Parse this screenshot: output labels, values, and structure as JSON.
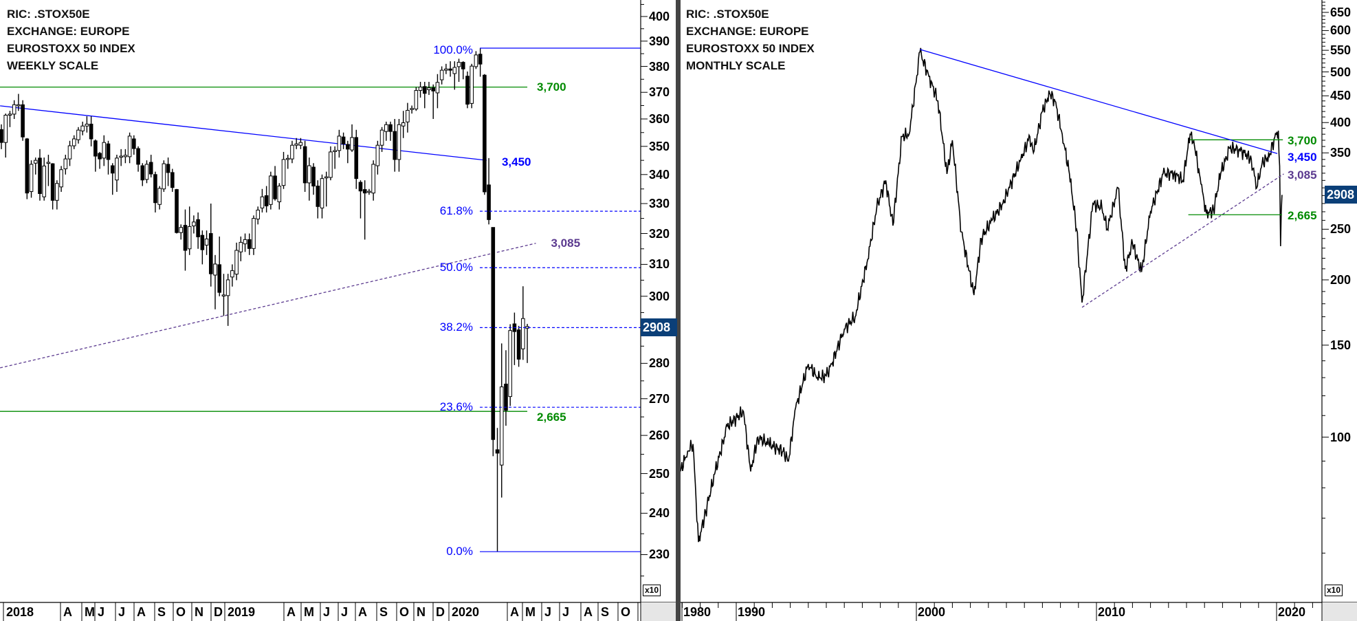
{
  "colors": {
    "trend": "#0000ff",
    "support": "#008a00",
    "rising": "#5b3a8f",
    "price_box": "#0b3f78"
  },
  "chart_data": [
    {
      "type": "candlestick",
      "title_lines": [
        "RIC: .STOX50E",
        "EXCHANGE: EUROPE",
        "EUROSTOXX 50 INDEX",
        "WEEKLY SCALE"
      ],
      "scale": "log",
      "ylim": [
        226,
        404
      ],
      "y_multiplier_label": "x10",
      "y_ticks": [
        400,
        390,
        380,
        370,
        360,
        350,
        340,
        330,
        320,
        310,
        300,
        280,
        270,
        260,
        250,
        240,
        230
      ],
      "x_labels": [
        "2018",
        "A",
        "M",
        "J",
        "J",
        "A",
        "S",
        "O",
        "N",
        "D",
        "2019",
        "A",
        "M",
        "J",
        "J",
        "A",
        "S",
        "O",
        "N",
        "D",
        "2020",
        "A",
        "M",
        "J",
        "J",
        "A",
        "S",
        "O"
      ],
      "last_price": "2908",
      "candles_ohlc": [
        [
          356.1,
          358,
          349,
          351.4
        ],
        [
          351.4,
          362,
          346,
          361.4
        ],
        [
          361.6,
          363,
          357,
          361.8
        ],
        [
          361.8,
          367,
          360,
          365.3
        ],
        [
          365.3,
          369.4,
          363,
          365.3
        ],
        [
          365.3,
          367,
          352,
          353.4
        ],
        [
          352.7,
          353,
          331.5,
          333.6
        ],
        [
          334.1,
          345,
          332,
          343.6
        ],
        [
          344,
          346,
          340,
          345
        ],
        [
          345.8,
          349,
          331,
          333.4
        ],
        [
          332.3,
          346,
          331,
          343
        ],
        [
          344.3,
          347,
          336,
          344.3
        ],
        [
          343.8,
          344,
          328,
          331.1
        ],
        [
          331.1,
          338,
          328,
          336.9
        ],
        [
          335.7,
          343,
          334,
          341.7
        ],
        [
          342,
          347,
          340,
          345.5
        ],
        [
          345.5,
          352,
          343,
          350.2
        ],
        [
          350.2,
          354,
          349,
          352.7
        ],
        [
          352.4,
          357,
          351,
          355.9
        ],
        [
          355.6,
          359,
          354,
          357.4
        ],
        [
          357.4,
          361,
          355,
          358.1
        ],
        [
          358.1,
          361,
          350,
          352.7
        ],
        [
          352,
          352.5,
          341,
          346.5
        ],
        [
          347.5,
          348,
          342,
          345.5
        ],
        [
          345.8,
          354,
          343,
          351.4
        ],
        [
          350.9,
          352,
          340,
          345.3
        ],
        [
          343.1,
          344,
          333,
          340.5
        ],
        [
          338.1,
          347,
          334,
          345.8
        ],
        [
          346.5,
          349,
          343,
          346.5
        ],
        [
          346.3,
          349,
          344,
          346.8
        ],
        [
          346.3,
          355,
          344,
          353.7
        ],
        [
          352.7,
          354,
          347,
          349.2
        ],
        [
          349.2,
          350,
          341,
          343.6
        ],
        [
          343.1,
          344,
          336,
          338.1
        ],
        [
          338.3,
          345,
          337,
          343.6
        ],
        [
          344.3,
          347,
          339,
          340.2
        ],
        [
          340,
          341,
          327,
          330.3
        ],
        [
          329.7,
          336,
          328,
          335.2
        ],
        [
          335,
          345,
          334,
          343.8
        ],
        [
          343.6,
          346,
          336,
          340.7
        ],
        [
          340.7,
          342,
          334,
          335.5
        ],
        [
          334.8,
          335,
          320,
          320.3
        ],
        [
          320.3,
          323,
          318,
          322
        ],
        [
          322.7,
          328,
          308,
          314.5
        ],
        [
          315,
          329,
          313,
          322.3
        ],
        [
          322.5,
          326,
          320,
          323.8
        ],
        [
          324.6,
          327,
          315,
          318.9
        ],
        [
          319.4,
          321,
          310,
          314.7
        ],
        [
          316.2,
          321,
          313,
          318.2
        ],
        [
          320,
          330,
          303,
          307
        ],
        [
          306.6,
          313,
          296,
          310.1
        ],
        [
          309.9,
          319,
          300,
          301.2
        ],
        [
          300.2,
          307,
          294,
          300.4
        ],
        [
          300.2,
          307,
          291,
          305.1
        ],
        [
          306,
          310,
          303,
          308
        ],
        [
          306.9,
          317,
          305,
          314.5
        ],
        [
          314,
          319,
          311,
          317.1
        ],
        [
          316.6,
          320,
          314,
          318
        ],
        [
          318,
          320,
          313,
          315.1
        ],
        [
          315.1,
          326,
          313,
          325
        ],
        [
          324.8,
          329,
          323,
          327.8
        ],
        [
          328.5,
          335,
          327,
          332.3
        ],
        [
          332.7,
          336,
          327,
          329.2
        ],
        [
          329.7,
          341,
          328,
          339.5
        ],
        [
          339.5,
          343,
          331,
          331.6
        ],
        [
          330.6,
          337,
          328,
          336
        ],
        [
          336.2,
          348,
          335,
          345.3
        ],
        [
          345.5,
          347,
          342,
          345.7
        ],
        [
          345.5,
          352,
          344,
          350.4
        ],
        [
          350.4,
          353,
          349,
          350.9
        ],
        [
          350.4,
          353,
          349,
          351.4
        ],
        [
          349.9,
          352,
          334,
          337.1
        ],
        [
          337.1,
          346,
          331,
          343.1
        ],
        [
          342.6,
          344,
          333,
          336
        ],
        [
          336,
          338,
          325,
          329
        ],
        [
          328.5,
          340,
          325,
          338.6
        ],
        [
          339,
          341,
          329,
          339.2
        ],
        [
          339,
          350,
          338,
          348
        ],
        [
          348.1,
          350,
          342,
          348.5
        ],
        [
          348.5,
          356,
          346,
          353.7
        ],
        [
          353.4,
          355,
          349,
          350.9
        ],
        [
          350.7,
          352,
          344,
          349
        ],
        [
          348.7,
          358,
          348,
          353.2
        ],
        [
          353.2,
          356,
          335,
          338.6
        ],
        [
          337.3,
          338,
          325,
          334.3
        ],
        [
          334.8,
          338,
          318,
          333.6
        ],
        [
          334,
          335,
          333,
          334.2
        ],
        [
          333.6,
          345,
          331,
          343.6
        ],
        [
          343.1,
          352,
          340,
          350.4
        ],
        [
          350.4,
          357,
          348,
          355.9
        ],
        [
          355.4,
          359,
          352,
          357.9
        ],
        [
          357.9,
          359,
          352,
          355.4
        ],
        [
          355.4,
          360,
          341,
          345.3
        ],
        [
          345.3,
          360,
          341,
          357.9
        ],
        [
          357.4,
          363,
          353,
          358.6
        ],
        [
          358.9,
          366,
          355,
          363.2
        ],
        [
          363.7,
          365,
          362,
          363.9
        ],
        [
          363.7,
          372,
          363,
          370.7
        ],
        [
          370.7,
          374,
          368,
          372
        ],
        [
          372.2,
          374,
          364,
          369.6
        ],
        [
          371,
          374,
          369,
          371.7
        ],
        [
          371.7,
          373,
          360,
          370.5
        ],
        [
          369.8,
          377,
          364,
          373.8
        ],
        [
          374.8,
          380,
          373,
          378.5
        ],
        [
          378.5,
          381,
          377,
          379
        ],
        [
          379,
          382,
          376,
          378.5
        ],
        [
          377.2,
          382,
          371,
          379.6
        ],
        [
          379.9,
          383,
          374,
          381.6
        ],
        [
          381.6,
          382,
          375,
          379
        ],
        [
          376.2,
          378,
          364,
          365.5
        ],
        [
          365.8,
          381,
          364,
          380.1
        ],
        [
          379.9,
          386,
          379,
          384.5
        ],
        [
          384.8,
          387.2,
          376,
          380.9
        ],
        [
          376.6,
          377,
          333,
          334
        ],
        [
          336.4,
          345.8,
          323,
          324.6
        ],
        [
          322,
          322,
          254.5,
          258.9
        ],
        [
          256.2,
          262,
          230.7,
          255.3
        ],
        [
          252.2,
          285.8,
          243.9,
          273.3
        ],
        [
          274.1,
          283.8,
          262.6,
          266.8
        ],
        [
          270.6,
          291.5,
          268,
          289.6
        ],
        [
          291.6,
          295,
          279.5,
          289.3
        ],
        [
          289.8,
          291,
          279,
          281.2
        ],
        [
          284.2,
          303.1,
          281,
          293.2
        ],
        [
          290.3,
          291.6,
          280.1,
          290.8
        ]
      ],
      "fibonacci": {
        "high": 387.2,
        "low": 230.7,
        "levels": [
          {
            "pct": 1.0,
            "label": "100.0%",
            "style": "solid"
          },
          {
            "pct": 0.618,
            "label": "61.8%",
            "style": "dashed"
          },
          {
            "pct": 0.5,
            "label": "50.0%",
            "style": "dashed"
          },
          {
            "pct": 0.382,
            "label": "38.2%",
            "style": "dashed"
          },
          {
            "pct": 0.236,
            "label": "23.6%",
            "style": "dashed"
          },
          {
            "pct": 0.0,
            "label": "0.0%",
            "style": "solid"
          }
        ]
      },
      "levels": [
        {
          "label": "3,700",
          "kind": "horizontal",
          "color": "support",
          "value": 372,
          "from": -1,
          "to": 123
        },
        {
          "label": "3,450",
          "kind": "trendline",
          "color": "trend",
          "p1": [
            -0.3,
            364.9
          ],
          "p2": [
            113.5,
            345.0
          ]
        },
        {
          "label": "3,085",
          "kind": "trendline-dashed",
          "color": "rising",
          "p1": [
            -0.3,
            278.7
          ],
          "p2": [
            125,
            316.8
          ]
        },
        {
          "label": "2,665",
          "kind": "horizontal",
          "color": "support",
          "value": 266.5,
          "from": -1,
          "to": 123
        }
      ]
    },
    {
      "type": "line",
      "title_lines": [
        "RIC: .STOX50E",
        "EXCHANGE: EUROPE",
        "EUROSTOXX 50 INDEX",
        "MONTHLY SCALE"
      ],
      "scale": "log",
      "y_multiplier_label": "x10",
      "y_ticks": [
        650,
        600,
        550,
        500,
        450,
        400,
        350,
        250,
        200,
        150,
        100
      ],
      "x_labels": [
        {
          "label": "1980",
          "year": 1986.85
        },
        {
          "label": "1990",
          "year": 1990
        },
        {
          "label": "2000",
          "year": 2000
        },
        {
          "label": "2010",
          "year": 2010
        },
        {
          "label": "2020",
          "year": 2020
        }
      ],
      "xlim": [
        1986.8,
        2022.6
      ],
      "last_price": "2908",
      "series": [
        [
          1986.9,
          86
        ],
        [
          1987.3,
          94
        ],
        [
          1987.6,
          97
        ],
        [
          1987.9,
          63
        ],
        [
          1988.3,
          72
        ],
        [
          1988.8,
          85
        ],
        [
          1989.5,
          105
        ],
        [
          1990.4,
          112
        ],
        [
          1990.8,
          86
        ],
        [
          1991.2,
          100
        ],
        [
          1991.8,
          97
        ],
        [
          1992.6,
          94
        ],
        [
          1992.9,
          90
        ],
        [
          1993.3,
          114
        ],
        [
          1994.0,
          138
        ],
        [
          1994.5,
          130
        ],
        [
          1995.0,
          131
        ],
        [
          1995.3,
          138
        ],
        [
          1996.0,
          161
        ],
        [
          1996.6,
          170
        ],
        [
          1997.3,
          219
        ],
        [
          1997.8,
          275
        ],
        [
          1998.3,
          310
        ],
        [
          1998.7,
          254
        ],
        [
          1999.2,
          376
        ],
        [
          1999.6,
          380
        ],
        [
          2000.2,
          546
        ],
        [
          2000.7,
          490
        ],
        [
          2001.2,
          440
        ],
        [
          2001.7,
          319
        ],
        [
          2002.0,
          370
        ],
        [
          2002.5,
          247
        ],
        [
          2003.2,
          187
        ],
        [
          2003.6,
          240
        ],
        [
          2004.2,
          260
        ],
        [
          2004.8,
          280
        ],
        [
          2005.1,
          297
        ],
        [
          2005.8,
          340
        ],
        [
          2006.3,
          376
        ],
        [
          2006.5,
          350
        ],
        [
          2007.0,
          420
        ],
        [
          2007.4,
          455
        ],
        [
          2007.7,
          440
        ],
        [
          2008.1,
          380
        ],
        [
          2008.5,
          319
        ],
        [
          2008.9,
          250
        ],
        [
          2009.2,
          181
        ],
        [
          2009.8,
          280
        ],
        [
          2010.3,
          275
        ],
        [
          2010.6,
          250
        ],
        [
          2011.2,
          300
        ],
        [
          2011.6,
          210
        ],
        [
          2012.0,
          235
        ],
        [
          2012.5,
          207
        ],
        [
          2013.0,
          270
        ],
        [
          2013.7,
          319
        ],
        [
          2014.3,
          320
        ],
        [
          2014.8,
          310
        ],
        [
          2015.2,
          380
        ],
        [
          2015.4,
          370
        ],
        [
          2015.8,
          305
        ],
        [
          2016.1,
          268
        ],
        [
          2016.5,
          272
        ],
        [
          2016.9,
          320
        ],
        [
          2017.4,
          357
        ],
        [
          2017.9,
          355
        ],
        [
          2018.2,
          350
        ],
        [
          2018.6,
          340
        ],
        [
          2018.9,
          300
        ],
        [
          2019.2,
          335
        ],
        [
          2019.6,
          345
        ],
        [
          2019.9,
          375
        ],
        [
          2020.1,
          386
        ],
        [
          2020.17,
          330
        ],
        [
          2020.22,
          232
        ],
        [
          2020.26,
          270
        ],
        [
          2020.3,
          290.8
        ]
      ],
      "levels": [
        {
          "label": "3,700",
          "kind": "horizontal",
          "color": "support",
          "value": 370.7,
          "from": 2015.2,
          "to": 2020.35
        },
        {
          "label": "3,450",
          "kind": "trendline",
          "color": "trend",
          "p1": [
            2000.2,
            552
          ],
          "p2": [
            2020.04,
            349
          ]
        },
        {
          "label": "3,085",
          "kind": "trendline-dashed",
          "color": "rising",
          "p1": [
            2009.2,
            177.2
          ],
          "p2": [
            2020.4,
            319
          ]
        },
        {
          "label": "2,665",
          "kind": "horizontal",
          "color": "support",
          "value": 266.5,
          "from": 2015.1,
          "to": 2020.3
        }
      ]
    }
  ]
}
